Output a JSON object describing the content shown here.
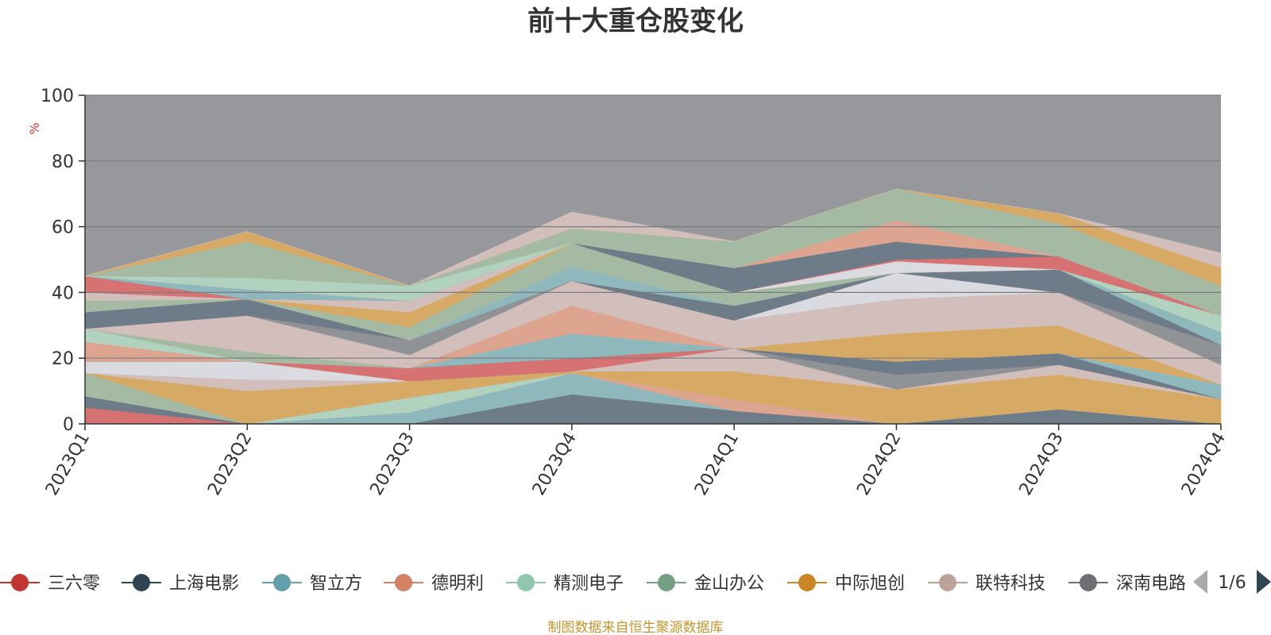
{
  "chart_data": {
    "type": "area",
    "title": "前十大重仓股变化",
    "ylabel": "%",
    "ylim": [
      0,
      100
    ],
    "yticks": [
      0,
      20,
      40,
      60,
      80,
      100
    ],
    "categories": [
      "2023Q1",
      "2023Q2",
      "2023Q3",
      "2023Q4",
      "2024Q1",
      "2024Q2",
      "2024Q3",
      "2024Q4"
    ],
    "grid": true,
    "plot_background": "#97989c",
    "legend_position": "bottom",
    "legend": [
      {
        "name": "三六零",
        "color": "#c23531"
      },
      {
        "name": "上海电影",
        "color": "#2f4554"
      },
      {
        "name": "智立方",
        "color": "#61a0a8"
      },
      {
        "name": "德明利",
        "color": "#d48265"
      },
      {
        "name": "精测电子",
        "color": "#91c7ae"
      },
      {
        "name": "金山办公",
        "color": "#749f83"
      },
      {
        "name": "中际旭创",
        "color": "#ca8622"
      },
      {
        "name": "联特科技",
        "color": "#bda29a"
      },
      {
        "name": "深南电路",
        "color": "#6e7074"
      }
    ],
    "legend_page": "1/6",
    "bands": [
      {
        "color": "#d87070",
        "lower": [
          0,
          0,
          0,
          0,
          0,
          0,
          0,
          0
        ],
        "upper": [
          5,
          0,
          0,
          0,
          0,
          0,
          0,
          0
        ]
      },
      {
        "color": "#6c7b88",
        "lower": [
          5,
          0,
          0,
          0,
          0,
          0,
          0,
          0
        ],
        "upper": [
          8.5,
          0,
          0,
          9,
          4,
          0,
          4.5,
          0
        ]
      },
      {
        "color": "#8fb9bd",
        "lower": [
          8.5,
          0,
          0,
          9,
          4,
          0,
          4.5,
          0
        ],
        "upper": [
          8.5,
          0,
          3.5,
          15.5,
          4,
          0,
          4.5,
          0
        ]
      },
      {
        "color": "#e0a58f",
        "lower": [
          8.5,
          0,
          3.5,
          15.5,
          4,
          0,
          4.5,
          0
        ],
        "upper": [
          8.5,
          0,
          3.5,
          15.5,
          7.5,
          0,
          4.5,
          0
        ]
      },
      {
        "color": "#b1d4c0",
        "lower": [
          8.5,
          0,
          3.5,
          15.5,
          7.5,
          0,
          4.5,
          0
        ],
        "upper": [
          8.5,
          0,
          8,
          15.5,
          7.5,
          0,
          4.5,
          0
        ]
      },
      {
        "color": "#a5bba2",
        "lower": [
          8.5,
          0,
          8,
          15.5,
          7.5,
          0,
          4.5,
          0
        ],
        "upper": [
          15.5,
          0,
          8,
          15.5,
          7.5,
          0,
          4.5,
          0
        ]
      },
      {
        "color": "#d9aa62",
        "lower": [
          15.5,
          0,
          8,
          15.5,
          7.5,
          0,
          4.5,
          0
        ],
        "upper": [
          15.5,
          10,
          13,
          16,
          16,
          10.5,
          15,
          7.5
        ]
      },
      {
        "color": "#d4c0bb",
        "lower": [
          15.5,
          10,
          13,
          16,
          16,
          10.5,
          15,
          7.5
        ],
        "upper": [
          15.5,
          13.5,
          13,
          16,
          23,
          10.5,
          18,
          7.5
        ]
      },
      {
        "color": "#909396",
        "lower": [
          15.5,
          13.5,
          13,
          16,
          23,
          10.5,
          18,
          7.5
        ],
        "upper": [
          15.5,
          13.5,
          13,
          16,
          23,
          15,
          18,
          7.5
        ]
      },
      {
        "color": "#dcdee3",
        "lower": [
          15.5,
          13.5,
          13,
          16,
          23,
          15,
          18,
          7.5
        ],
        "upper": [
          19,
          19,
          13,
          16,
          23,
          15,
          18,
          7.5
        ]
      },
      {
        "color": "#d87070",
        "lower": [
          19,
          19,
          13,
          16,
          23,
          15,
          18,
          7.5
        ],
        "upper": [
          19,
          19,
          17,
          20,
          23,
          15,
          18,
          7.5
        ]
      },
      {
        "color": "#6c7b88",
        "lower": [
          19,
          19,
          17,
          20,
          23,
          15,
          18,
          7.5
        ],
        "upper": [
          19,
          19,
          17,
          20,
          23,
          19,
          21.5,
          7.5
        ]
      },
      {
        "color": "#8fb9bd",
        "lower": [
          19,
          19,
          17,
          20,
          23,
          19,
          21.5,
          7.5
        ],
        "upper": [
          19,
          19,
          17,
          27.5,
          23,
          19,
          21.5,
          12
        ]
      },
      {
        "color": "#e0a58f",
        "lower": [
          19,
          19,
          17,
          27.5,
          23,
          19,
          21.5,
          12
        ],
        "upper": [
          25,
          19,
          17,
          36,
          23,
          19,
          21.5,
          12
        ]
      },
      {
        "color": "#b1d4c0",
        "lower": [
          25,
          19,
          17,
          36,
          23,
          19,
          21.5,
          12
        ],
        "upper": [
          29,
          19,
          17,
          36,
          23,
          19,
          21.5,
          12
        ]
      },
      {
        "color": "#a5bba2",
        "lower": [
          29,
          19,
          17,
          36,
          23,
          19,
          21.5,
          12
        ],
        "upper": [
          29,
          22,
          17,
          36,
          23,
          19,
          21.5,
          12
        ]
      },
      {
        "color": "#d9aa62",
        "lower": [
          29,
          22,
          17,
          36,
          23,
          19,
          21.5,
          12
        ],
        "upper": [
          29,
          22,
          17,
          36,
          23,
          27.5,
          30,
          12
        ]
      },
      {
        "color": "#d4c0bb",
        "lower": [
          29,
          22,
          17,
          36,
          23,
          27.5,
          30,
          12
        ],
        "upper": [
          29,
          33,
          21,
          43.5,
          31.5,
          38,
          40,
          18
        ]
      },
      {
        "color": "#909396",
        "lower": [
          29,
          33,
          21,
          43.5,
          31.5,
          38,
          40,
          18
        ],
        "upper": [
          29,
          33,
          25.5,
          43.5,
          31.5,
          38,
          40,
          24
        ]
      },
      {
        "color": "#dcdee3",
        "lower": [
          29,
          33,
          25.5,
          43.5,
          31.5,
          38,
          40,
          24
        ],
        "upper": [
          29,
          33,
          25.5,
          43.5,
          31.5,
          46,
          40,
          24
        ]
      },
      {
        "color": "#d87070",
        "lower": [
          29,
          33,
          25.5,
          43.5,
          31.5,
          46,
          40,
          24
        ],
        "upper": [
          29,
          33,
          25.5,
          43.5,
          31.5,
          46,
          40,
          24
        ]
      },
      {
        "color": "#6c7b88",
        "lower": [
          29,
          33,
          25.5,
          43.5,
          31.5,
          46,
          40,
          24
        ],
        "upper": [
          34,
          38,
          25.5,
          43.5,
          36,
          46,
          47,
          24
        ]
      },
      {
        "color": "#8fb9bd",
        "lower": [
          34,
          38,
          25.5,
          43.5,
          36,
          46,
          47,
          24
        ],
        "upper": [
          34,
          38,
          25.5,
          48,
          36,
          46,
          47,
          28
        ]
      },
      {
        "color": "#e0a58f",
        "lower": [
          34,
          38,
          25.5,
          48,
          36,
          46,
          47,
          28
        ],
        "upper": [
          34,
          38,
          25.5,
          48,
          36,
          46,
          47,
          28
        ]
      },
      {
        "color": "#b1d4c0",
        "lower": [
          34,
          38,
          25.5,
          48,
          36,
          46,
          47,
          28
        ],
        "upper": [
          34,
          38,
          25.5,
          48,
          36,
          46,
          47,
          33
        ]
      },
      {
        "color": "#a5bba2",
        "lower": [
          34,
          38,
          25.5,
          48,
          36,
          46,
          47,
          33
        ],
        "upper": [
          37.5,
          38,
          29.5,
          55,
          40,
          46,
          47,
          33
        ]
      },
      {
        "color": "#d9aa62",
        "lower": [
          37.5,
          38,
          29.5,
          55,
          40,
          46,
          47,
          33
        ],
        "upper": [
          37.5,
          38,
          34,
          55,
          40,
          46,
          47,
          33
        ]
      },
      {
        "color": "#d4c0bb",
        "lower": [
          37.5,
          38,
          34,
          55,
          40,
          46,
          47,
          33
        ],
        "upper": [
          40,
          38,
          37.5,
          55,
          40,
          46,
          47,
          33
        ]
      },
      {
        "color": "#dcdee3",
        "lower": [
          40,
          38,
          37.5,
          55,
          40,
          46,
          47,
          33
        ],
        "upper": [
          40,
          38,
          37.5,
          55,
          40,
          49.5,
          47,
          33
        ]
      },
      {
        "color": "#d87070",
        "lower": [
          40,
          38,
          37.5,
          55,
          40,
          49.5,
          47,
          33
        ],
        "upper": [
          45,
          38,
          37.5,
          55,
          40,
          50,
          51,
          33
        ]
      },
      {
        "color": "#6c7b88",
        "lower": [
          45,
          38,
          37.5,
          55,
          40,
          50,
          51,
          33
        ],
        "upper": [
          45,
          38,
          37.5,
          55,
          47.5,
          55.5,
          51,
          33
        ]
      },
      {
        "color": "#8fb9bd",
        "lower": [
          45,
          38,
          37.5,
          55,
          47.5,
          55.5,
          51,
          33
        ],
        "upper": [
          45,
          41,
          37.5,
          55,
          47.5,
          55.5,
          51,
          33
        ]
      },
      {
        "color": "#e0a58f",
        "lower": [
          45,
          41,
          37.5,
          55,
          47.5,
          55.5,
          51,
          33
        ],
        "upper": [
          45,
          41,
          37.5,
          55,
          47.5,
          62,
          51,
          33
        ]
      },
      {
        "color": "#b1d4c0",
        "lower": [
          45,
          41,
          37.5,
          55,
          47.5,
          62,
          51,
          33
        ],
        "upper": [
          45,
          44.5,
          42,
          55,
          47.5,
          62,
          51,
          33
        ]
      },
      {
        "color": "#a5bba2",
        "lower": [
          45,
          44.5,
          42,
          55,
          47.5,
          62,
          51,
          33
        ],
        "upper": [
          45,
          55.5,
          42,
          59.5,
          55.5,
          71.5,
          61,
          42
        ]
      },
      {
        "color": "#d9aa62",
        "lower": [
          45,
          55.5,
          42,
          59.5,
          55.5,
          71.5,
          61,
          42
        ],
        "upper": [
          45,
          58.5,
          42,
          59.5,
          55.5,
          71.5,
          64,
          47.5
        ]
      },
      {
        "color": "#d4c0bb",
        "lower": [
          45,
          58.5,
          42,
          59.5,
          55.5,
          71.5,
          64,
          47.5
        ],
        "upper": [
          45,
          58.5,
          42,
          64.5,
          55.5,
          71.5,
          64,
          52
        ]
      }
    ]
  },
  "footer": {
    "source": "制图数据来自恒生聚源数据库"
  }
}
